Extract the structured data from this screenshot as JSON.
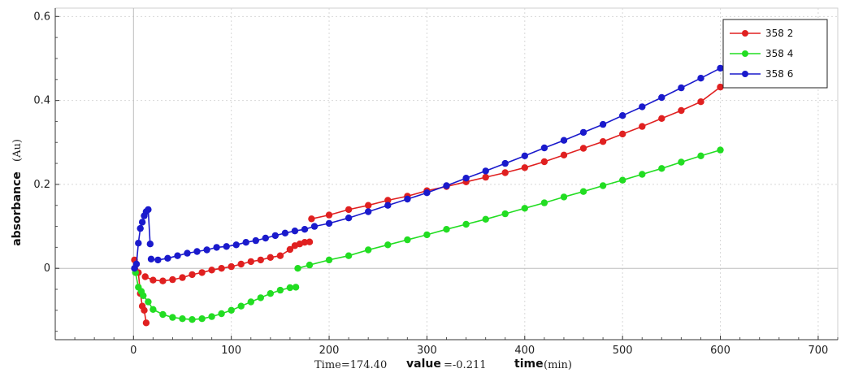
{
  "chart_data": {
    "type": "scatter",
    "x_ticks": [
      0,
      100,
      200,
      300,
      400,
      500,
      600,
      700
    ],
    "y_ticks": [
      0,
      0.2,
      0.4,
      0.6
    ],
    "y_tick_labels": [
      "0",
      "0.2",
      "0.4",
      "0.6"
    ],
    "xlim": [
      -80,
      720
    ],
    "ylim": [
      -0.17,
      0.62
    ],
    "grid": true,
    "legend_placement": "top-right",
    "xlabel": "time",
    "xlabel_unit": "(min)",
    "ylabel": "absorbance",
    "ylabel_unit": "(Au)",
    "series": [
      {
        "name": "358 2",
        "color": "#e02020",
        "segments": [
          {
            "x": [
              1,
              3,
              5,
              7,
              9,
              11,
              13
            ],
            "y": [
              0.02,
              0.01,
              -0.01,
              -0.06,
              -0.09,
              -0.1,
              -0.13
            ]
          },
          {
            "x": [
              12,
              20,
              30,
              40,
              50,
              60,
              70,
              80,
              90,
              100,
              110,
              120,
              130,
              140,
              150,
              160,
              165,
              170,
              175,
              180
            ],
            "y": [
              -0.02,
              -0.028,
              -0.03,
              -0.027,
              -0.022,
              -0.015,
              -0.01,
              -0.004,
              0.0,
              0.004,
              0.01,
              0.016,
              0.02,
              0.026,
              0.03,
              0.045,
              0.054,
              0.058,
              0.062,
              0.063
            ]
          },
          {
            "x": [
              182,
              200,
              220,
              240,
              260,
              280,
              300,
              320,
              340,
              360,
              380,
              400,
              420,
              440,
              460,
              480,
              500,
              520,
              540,
              560,
              580,
              600
            ],
            "y": [
              0.118,
              0.127,
              0.14,
              0.15,
              0.162,
              0.172,
              0.185,
              0.195,
              0.206,
              0.217,
              0.228,
              0.24,
              0.254,
              0.27,
              0.286,
              0.302,
              0.32,
              0.338,
              0.357,
              0.376,
              0.397,
              0.432
            ]
          }
        ]
      },
      {
        "name": "358 4",
        "color": "#22dd22",
        "segments": [
          {
            "x": [
              2,
              5,
              8,
              10,
              15,
              20,
              30,
              40,
              50,
              60,
              70,
              80,
              90,
              100,
              110,
              120,
              130,
              140,
              150,
              160,
              166
            ],
            "y": [
              -0.01,
              -0.045,
              -0.055,
              -0.065,
              -0.08,
              -0.098,
              -0.11,
              -0.117,
              -0.12,
              -0.122,
              -0.12,
              -0.115,
              -0.108,
              -0.1,
              -0.09,
              -0.08,
              -0.07,
              -0.06,
              -0.052,
              -0.046,
              -0.045
            ]
          },
          {
            "x": [
              168,
              180,
              200,
              220,
              240,
              260,
              280,
              300,
              320,
              340,
              360,
              380,
              400,
              420,
              440,
              460,
              480,
              500,
              520,
              540,
              560,
              580,
              600
            ],
            "y": [
              0.0,
              0.008,
              0.02,
              0.03,
              0.044,
              0.056,
              0.068,
              0.08,
              0.093,
              0.105,
              0.117,
              0.13,
              0.143,
              0.156,
              0.17,
              0.183,
              0.197,
              0.21,
              0.224,
              0.238,
              0.253,
              0.268,
              0.282
            ]
          }
        ]
      },
      {
        "name": "358 6",
        "color": "#1a1acc",
        "segments": [
          {
            "x": [
              1,
              3,
              5,
              7,
              9,
              11,
              13,
              15,
              17
            ],
            "y": [
              0.0,
              0.01,
              0.06,
              0.095,
              0.11,
              0.125,
              0.135,
              0.14,
              0.058
            ]
          },
          {
            "x": [
              18,
              25,
              35,
              45,
              55,
              65,
              75,
              85,
              95,
              105,
              115,
              125,
              135,
              145,
              155,
              165,
              175,
              185,
              200,
              220,
              240,
              260,
              280,
              300,
              320,
              340,
              360,
              380,
              400,
              420,
              440,
              460,
              480,
              500,
              520,
              540,
              560,
              580,
              600
            ],
            "y": [
              0.022,
              0.02,
              0.024,
              0.03,
              0.036,
              0.04,
              0.044,
              0.05,
              0.052,
              0.056,
              0.062,
              0.066,
              0.072,
              0.078,
              0.084,
              0.089,
              0.093,
              0.1,
              0.107,
              0.12,
              0.135,
              0.15,
              0.165,
              0.18,
              0.197,
              0.215,
              0.232,
              0.25,
              0.268,
              0.287,
              0.305,
              0.324,
              0.343,
              0.364,
              0.385,
              0.407,
              0.43,
              0.453,
              0.477
            ]
          }
        ]
      }
    ]
  },
  "status": {
    "time_label": "Time=174.40",
    "value_label": "value",
    "value_text": "=-0.211"
  },
  "legend": {
    "entries": [
      "358 2",
      "358 4",
      "358 6"
    ]
  }
}
